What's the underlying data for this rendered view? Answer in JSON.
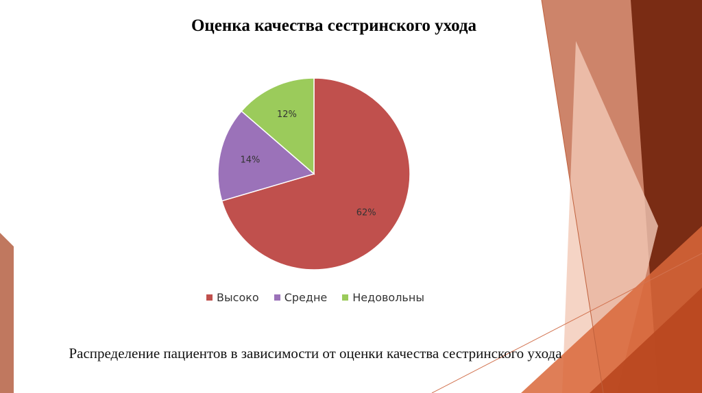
{
  "chart_data": {
    "type": "pie",
    "title": "Оценка качества сестринского ухода",
    "categories": [
      "Высоко",
      "Средне",
      "Недовольны"
    ],
    "values": [
      62,
      14,
      12
    ],
    "value_labels": [
      "62%",
      "14%",
      "12%"
    ],
    "colors": [
      "#c0504d",
      "#9b72b9",
      "#9bcb5b"
    ],
    "caption": "Распределение пациентов в зависимости от оценки качества сестринского ухода"
  }
}
